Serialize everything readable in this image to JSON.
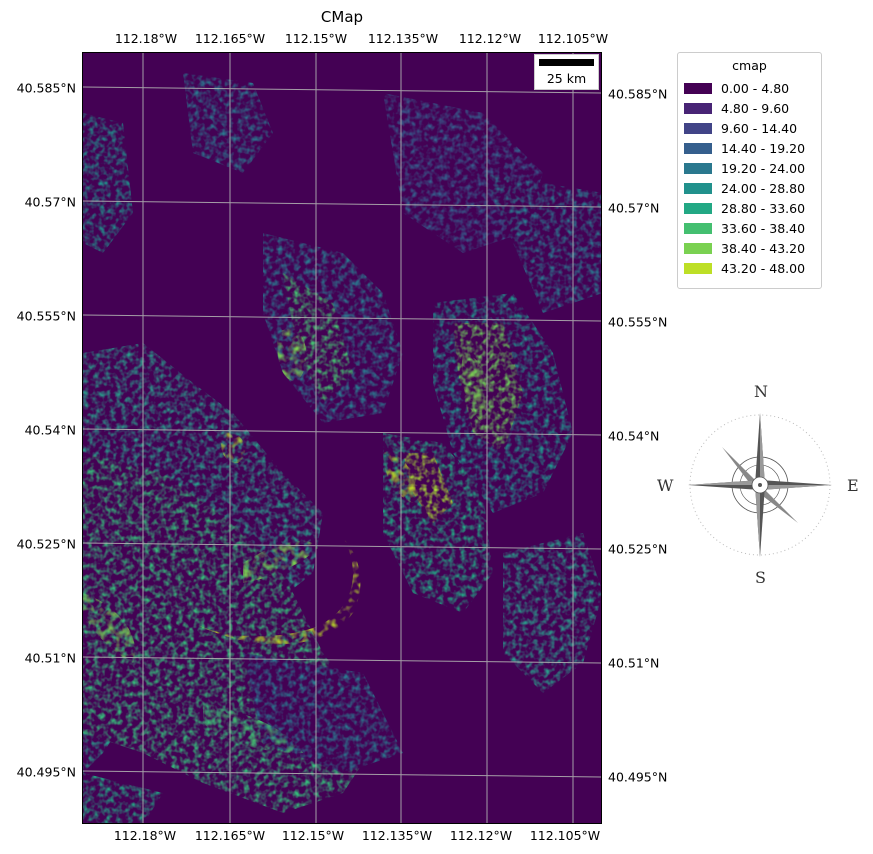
{
  "title": "CMap",
  "lon_ticks_top": [
    "112.18°W",
    "112.165°W",
    "112.15°W",
    "112.135°W",
    "112.12°W",
    "112.105°W"
  ],
  "lon_ticks_bottom": [
    "112.18°W",
    "112.165°W",
    "112.15°W",
    "112.135°W",
    "112.12°W",
    "112.105°W"
  ],
  "lat_ticks_left": [
    "40.585°N",
    "40.57°N",
    "40.555°N",
    "40.54°N",
    "40.525°N",
    "40.51°N",
    "40.495°N"
  ],
  "lat_ticks_right": [
    "40.585°N",
    "40.57°N",
    "40.555°N",
    "40.54°N",
    "40.525°N",
    "40.51°N",
    "40.495°N"
  ],
  "scale_bar": {
    "label": "25 km"
  },
  "legend": {
    "title": "cmap",
    "items": [
      {
        "label": "0.00 - 4.80",
        "color": "#440154"
      },
      {
        "label": "4.80 - 9.60",
        "color": "#482475"
      },
      {
        "label": "9.60 - 14.40",
        "color": "#414487"
      },
      {
        "label": "14.40 - 19.20",
        "color": "#355f8d"
      },
      {
        "label": "19.20 - 24.00",
        "color": "#2a788e"
      },
      {
        "label": "24.00 - 28.80",
        "color": "#21918c"
      },
      {
        "label": "28.80 - 33.60",
        "color": "#22a884"
      },
      {
        "label": "33.60 - 38.40",
        "color": "#44bf70"
      },
      {
        "label": "38.40 - 43.20",
        "color": "#7ad151"
      },
      {
        "label": "43.20 - 48.00",
        "color": "#bddf26"
      }
    ]
  },
  "compass": {
    "n": "N",
    "s": "S",
    "e": "E",
    "w": "W"
  }
}
